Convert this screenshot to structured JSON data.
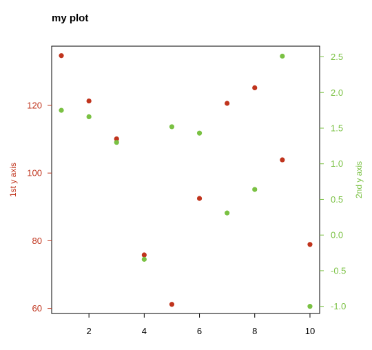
{
  "chart_data": {
    "type": "scatter",
    "title": "my plot",
    "xlabel": "",
    "x": [
      1,
      2,
      3,
      4,
      5,
      6,
      7,
      8,
      9,
      10
    ],
    "x_ticks": [
      "2",
      "4",
      "6",
      "8",
      "10"
    ],
    "xlim": [
      0.65,
      10.35
    ],
    "y1": {
      "label": "1st y axis",
      "color": "#c0341d",
      "ylim": [
        58.5,
        137.5
      ],
      "ticks": [
        "60",
        "80",
        "100",
        "120"
      ],
      "values": [
        134.7,
        121.3,
        110.1,
        75.8,
        61.2,
        92.5,
        120.6,
        125.2,
        103.9,
        78.9
      ]
    },
    "y2": {
      "label": "2nd y axis",
      "color": "#7ac143",
      "ylim": [
        -1.1,
        2.65
      ],
      "ticks": [
        "-1.0",
        "-0.5",
        "0.0",
        "0.5",
        "1.0",
        "1.5",
        "2.0",
        "2.5"
      ],
      "values": [
        1.75,
        1.66,
        1.3,
        -0.34,
        1.52,
        1.43,
        0.31,
        0.64,
        2.51,
        -1.0
      ]
    }
  }
}
